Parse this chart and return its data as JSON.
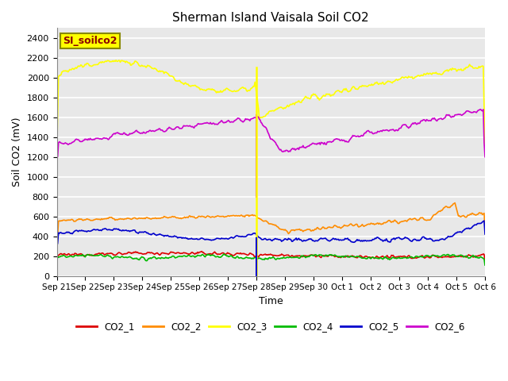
{
  "title": "Sherman Island Vaisala Soil CO2",
  "ylabel": "Soil CO2 (mV)",
  "xlabel": "Time",
  "ylim": [
    0,
    2500
  ],
  "yticks": [
    0,
    200,
    400,
    600,
    800,
    1000,
    1200,
    1400,
    1600,
    1800,
    2000,
    2200,
    2400
  ],
  "background_color": "#e8e8e8",
  "series_colors": {
    "CO2_1": "#dd0000",
    "CO2_2": "#ff8c00",
    "CO2_3": "#ffff00",
    "CO2_4": "#00bb00",
    "CO2_5": "#0000cc",
    "CO2_6": "#cc00cc"
  },
  "watermark": "SI_soilco2",
  "watermark_bg": "#ffff00",
  "watermark_text_color": "#8b0000",
  "watermark_border_color": "#888800",
  "tick_labels": [
    "Sep 21",
    "Sep 22",
    "Sep 23",
    "Sep 24",
    "Sep 25",
    "Sep 26",
    "Sep 27",
    "Sep 28",
    "Sep 29",
    "Sep 30",
    "Oct 1",
    "Oct 2",
    "Oct 3",
    "Oct 4",
    "Oct 5",
    "Oct 6"
  ],
  "spike_day": 7.0,
  "n_points": 500,
  "x_max": 15.0
}
